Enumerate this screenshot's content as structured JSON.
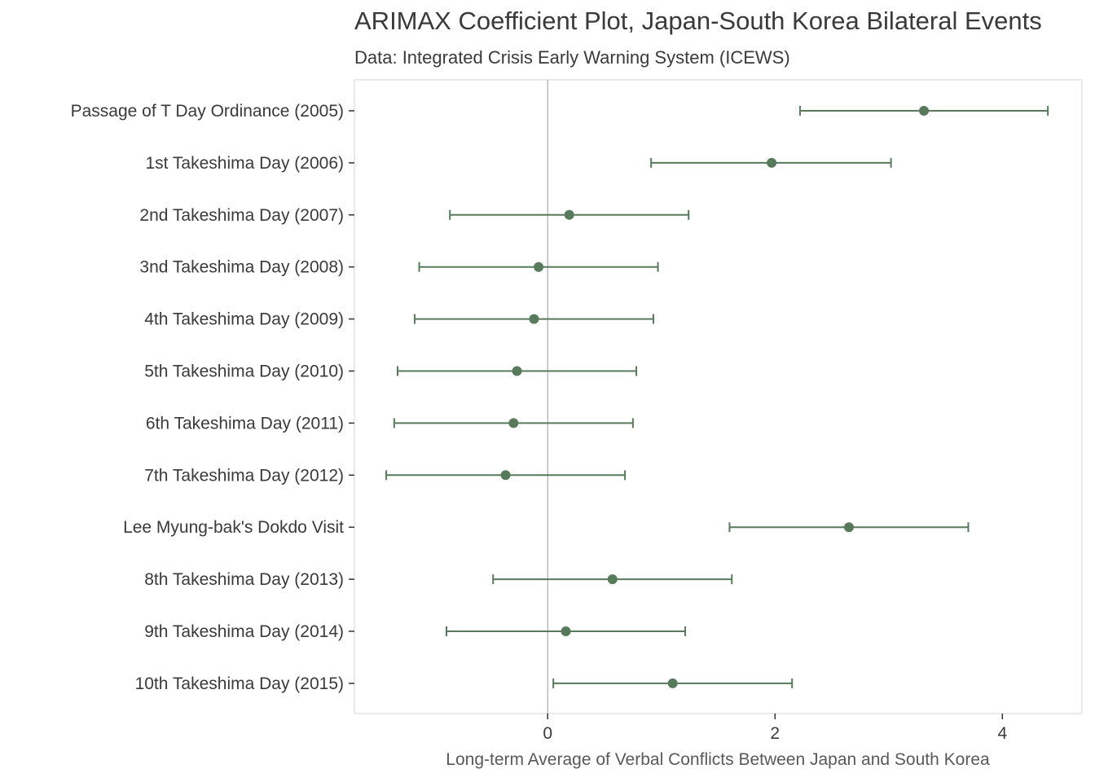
{
  "chart_data": {
    "type": "scatter",
    "title": "ARIMAX Coefficient Plot, Japan-South Korea Bilateral Events",
    "subtitle": "Data: Integrated Crisis Early Warning System (ICEWS)",
    "xlabel": "Long-term Average of Verbal Conflicts Between Japan and South Korea",
    "ylabel": "",
    "xlim": [
      -1.7,
      4.7
    ],
    "xticks": [
      0,
      2,
      4
    ],
    "xtick_labels": [
      "0",
      "2",
      "4"
    ],
    "reference_line_x": 0,
    "grid": false,
    "color": "#577a5b",
    "categories": [
      "Passage of T Day Ordinance (2005)",
      "1st Takeshima Day (2006)",
      "2nd Takeshima Day (2007)",
      "3nd Takeshima Day (2008)",
      "4th Takeshima Day (2009)",
      "5th Takeshima Day (2010)",
      "6th Takeshima Day (2011)",
      "7th Takeshima Day (2012)",
      "Lee Myung-bak's Dokdo Visit",
      "8th Takeshima Day (2013)",
      "9th Takeshima Day (2014)",
      "10th Takeshima Day (2015)"
    ],
    "estimates": [
      3.31,
      1.97,
      0.19,
      -0.08,
      -0.12,
      -0.27,
      -0.3,
      -0.37,
      2.65,
      0.57,
      0.16,
      1.1
    ],
    "lower": [
      2.22,
      0.91,
      -0.86,
      -1.13,
      -1.17,
      -1.32,
      -1.35,
      -1.42,
      1.6,
      -0.48,
      -0.89,
      0.05
    ],
    "upper": [
      4.4,
      3.02,
      1.24,
      0.97,
      0.93,
      0.78,
      0.75,
      0.68,
      3.7,
      1.62,
      1.21,
      2.15
    ]
  }
}
